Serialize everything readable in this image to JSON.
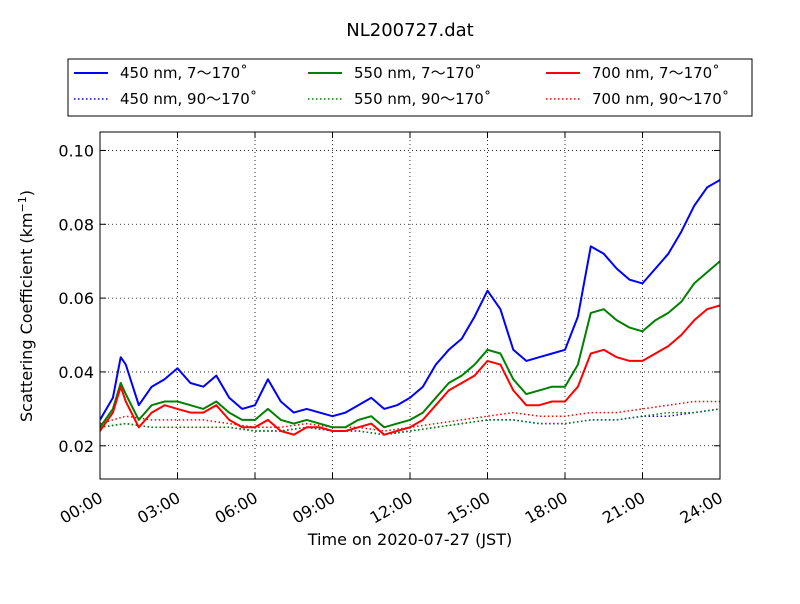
{
  "chart_data": {
    "type": "line",
    "title": "NL200727.dat",
    "xlabel": "Time on 2020-07-27 (JST)",
    "ylabel": "Scattering Coefficient (km",
    "ylabel_sup": "−1",
    "ylabel_tail": ")",
    "xlim": [
      0,
      24
    ],
    "ylim": [
      0.011,
      0.105
    ],
    "x_unit": "hours",
    "x_tick_values": [
      0,
      3,
      6,
      9,
      12,
      15,
      18,
      21,
      24
    ],
    "x_tick_labels": [
      "00:00",
      "03:00",
      "06:00",
      "09:00",
      "12:00",
      "15:00",
      "18:00",
      "21:00",
      "24:00"
    ],
    "y_tick_values": [
      0.02,
      0.04,
      0.06,
      0.08,
      0.1
    ],
    "y_tick_labels": [
      "0.02",
      "0.04",
      "0.06",
      "0.08",
      "0.10"
    ],
    "grid": true,
    "legend_position": "top, above plot",
    "series": [
      {
        "name": "450 nm, 7～170˚",
        "color": "#0000ff",
        "style": "solid",
        "x": [
          0,
          0.5,
          0.8,
          1,
          1.5,
          2,
          2.5,
          3,
          3.5,
          4,
          4.5,
          5,
          5.5,
          6,
          6.5,
          7,
          7.5,
          8,
          8.5,
          9,
          9.5,
          10,
          10.5,
          11,
          11.5,
          12,
          12.5,
          13,
          13.5,
          14,
          14.5,
          15,
          15.5,
          16,
          16.5,
          17,
          17.5,
          18,
          18.5,
          19,
          19.5,
          20,
          20.5,
          21,
          21.5,
          22,
          22.5,
          23,
          23.5,
          24
        ],
        "y": [
          0.027,
          0.033,
          0.044,
          0.042,
          0.031,
          0.036,
          0.038,
          0.041,
          0.037,
          0.036,
          0.039,
          0.033,
          0.03,
          0.031,
          0.038,
          0.032,
          0.029,
          0.03,
          0.029,
          0.028,
          0.029,
          0.031,
          0.033,
          0.03,
          0.031,
          0.033,
          0.036,
          0.042,
          0.046,
          0.049,
          0.055,
          0.062,
          0.057,
          0.046,
          0.043,
          0.044,
          0.045,
          0.046,
          0.055,
          0.074,
          0.072,
          0.068,
          0.065,
          0.064,
          0.068,
          0.072,
          0.078,
          0.085,
          0.09,
          0.092
        ]
      },
      {
        "name": "550 nm, 7～170˚",
        "color": "#008000",
        "style": "solid",
        "x": [
          0,
          0.5,
          0.8,
          1,
          1.5,
          2,
          2.5,
          3,
          3.5,
          4,
          4.5,
          5,
          5.5,
          6,
          6.5,
          7,
          7.5,
          8,
          8.5,
          9,
          9.5,
          10,
          10.5,
          11,
          11.5,
          12,
          12.5,
          13,
          13.5,
          14,
          14.5,
          15,
          15.5,
          16,
          16.5,
          17,
          17.5,
          18,
          18.5,
          19,
          19.5,
          20,
          20.5,
          21,
          21.5,
          22,
          22.5,
          23,
          23.5,
          24
        ],
        "y": [
          0.025,
          0.03,
          0.037,
          0.034,
          0.027,
          0.031,
          0.032,
          0.032,
          0.031,
          0.03,
          0.032,
          0.029,
          0.027,
          0.027,
          0.03,
          0.027,
          0.026,
          0.027,
          0.026,
          0.025,
          0.025,
          0.027,
          0.028,
          0.025,
          0.026,
          0.027,
          0.029,
          0.033,
          0.037,
          0.039,
          0.042,
          0.046,
          0.045,
          0.038,
          0.034,
          0.035,
          0.036,
          0.036,
          0.042,
          0.056,
          0.057,
          0.054,
          0.052,
          0.051,
          0.054,
          0.056,
          0.059,
          0.064,
          0.067,
          0.07
        ]
      },
      {
        "name": "700 nm, 7～170˚",
        "color": "#ff0000",
        "style": "solid",
        "x": [
          0,
          0.5,
          0.8,
          1,
          1.5,
          2,
          2.5,
          3,
          3.5,
          4,
          4.5,
          5,
          5.5,
          6,
          6.5,
          7,
          7.5,
          8,
          8.5,
          9,
          9.5,
          10,
          10.5,
          11,
          11.5,
          12,
          12.5,
          13,
          13.5,
          14,
          14.5,
          15,
          15.5,
          16,
          16.5,
          17,
          17.5,
          18,
          18.5,
          19,
          19.5,
          20,
          20.5,
          21,
          21.5,
          22,
          22.5,
          23,
          23.5,
          24
        ],
        "y": [
          0.024,
          0.029,
          0.036,
          0.032,
          0.025,
          0.029,
          0.031,
          0.03,
          0.029,
          0.029,
          0.031,
          0.027,
          0.025,
          0.025,
          0.027,
          0.024,
          0.023,
          0.025,
          0.025,
          0.024,
          0.024,
          0.025,
          0.026,
          0.023,
          0.024,
          0.025,
          0.027,
          0.031,
          0.035,
          0.037,
          0.039,
          0.043,
          0.042,
          0.035,
          0.031,
          0.031,
          0.032,
          0.032,
          0.036,
          0.045,
          0.046,
          0.044,
          0.043,
          0.043,
          0.045,
          0.047,
          0.05,
          0.054,
          0.057,
          0.058
        ]
      },
      {
        "name": "450 nm, 90～170˚",
        "color": "#0000ff",
        "style": "dotted",
        "x": [
          0,
          1,
          2,
          3,
          4,
          5,
          6,
          7,
          8,
          9,
          10,
          11,
          12,
          13,
          14,
          15,
          16,
          17,
          18,
          19,
          20,
          21,
          22,
          23,
          24
        ],
        "y": [
          0.025,
          0.026,
          0.025,
          0.025,
          0.025,
          0.025,
          0.024,
          0.024,
          0.025,
          0.024,
          0.024,
          0.023,
          0.024,
          0.025,
          0.026,
          0.027,
          0.027,
          0.026,
          0.026,
          0.027,
          0.027,
          0.028,
          0.028,
          0.029,
          0.03
        ]
      },
      {
        "name": "550 nm, 90～170˚",
        "color": "#008000",
        "style": "dotted",
        "x": [
          0,
          1,
          2,
          3,
          4,
          5,
          6,
          7,
          8,
          9,
          10,
          11,
          12,
          13,
          14,
          15,
          16,
          17,
          18,
          19,
          20,
          21,
          22,
          23,
          24
        ],
        "y": [
          0.025,
          0.026,
          0.025,
          0.025,
          0.025,
          0.025,
          0.024,
          0.024,
          0.025,
          0.024,
          0.024,
          0.023,
          0.024,
          0.025,
          0.026,
          0.027,
          0.027,
          0.026,
          0.026,
          0.027,
          0.027,
          0.028,
          0.029,
          0.029,
          0.03
        ]
      },
      {
        "name": "700 nm, 90～170˚",
        "color": "#ff0000",
        "style": "dotted",
        "x": [
          0,
          1,
          2,
          3,
          4,
          5,
          6,
          7,
          8,
          9,
          10,
          11,
          12,
          13,
          14,
          15,
          16,
          17,
          18,
          19,
          20,
          21,
          22,
          23,
          24
        ],
        "y": [
          0.026,
          0.028,
          0.027,
          0.027,
          0.027,
          0.026,
          0.025,
          0.025,
          0.026,
          0.025,
          0.025,
          0.024,
          0.025,
          0.026,
          0.027,
          0.028,
          0.029,
          0.028,
          0.028,
          0.029,
          0.029,
          0.03,
          0.031,
          0.032,
          0.032
        ]
      }
    ]
  }
}
